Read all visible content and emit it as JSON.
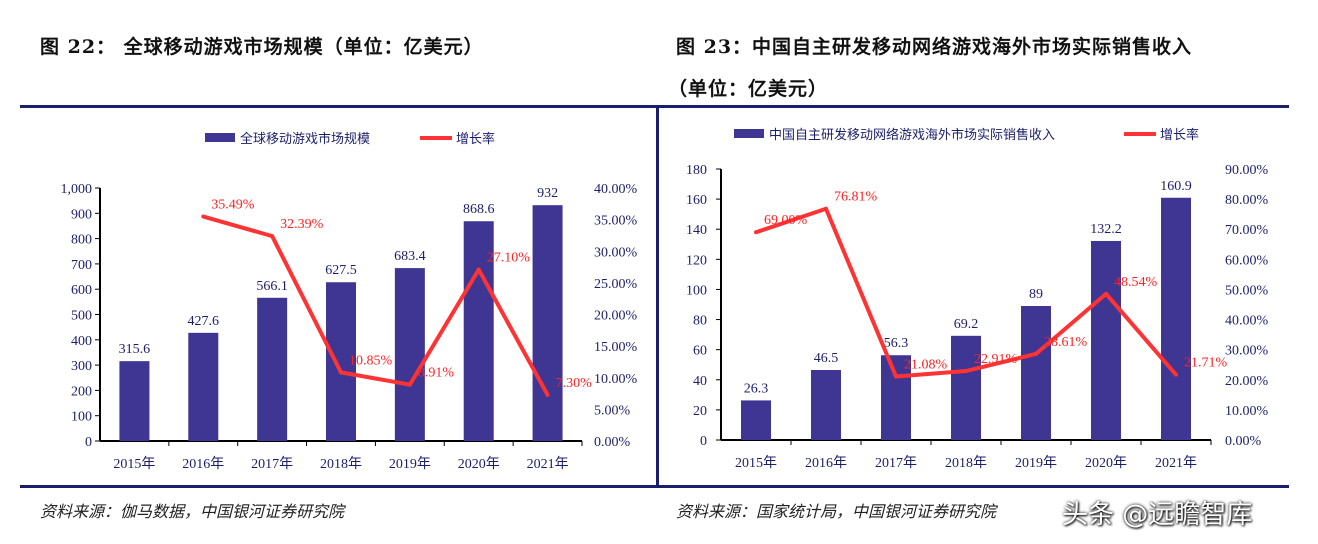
{
  "left": {
    "title": "图 22：  全球移动游戏市场规模（单位：亿美元）",
    "source": "资料来源：伽马数据，中国银河证券研究院"
  },
  "right": {
    "title_line1": "图 23：中国自主研发移动网络游戏海外市场实际销售收入",
    "title_line2": "（单位：亿美元）",
    "source": "资料来源：国家统计局，中国银河证券研究院"
  },
  "watermark": "头条 @远瞻智库",
  "colors": {
    "bar": "#3f3592",
    "line": "#ff3333",
    "axis_text": "#1b1f6b"
  },
  "chart_data": [
    {
      "type": "bar",
      "categories": [
        "2015年",
        "2016年",
        "2017年",
        "2018年",
        "2019年",
        "2020年",
        "2021年"
      ],
      "series": [
        {
          "name": "全球移动游戏市场规模",
          "type": "bar",
          "axis": "left",
          "values": [
            315.6,
            427.6,
            566.1,
            627.5,
            683.4,
            868.6,
            932
          ],
          "labels": [
            "315.6",
            "427.6",
            "566.1",
            "627.5",
            "683.4",
            "868.6",
            "932"
          ]
        },
        {
          "name": "增长率",
          "type": "line",
          "axis": "right",
          "values": [
            null,
            35.49,
            32.39,
            10.85,
            8.91,
            27.1,
            7.3
          ],
          "labels": [
            "",
            "35.49%",
            "32.39%",
            "10.85%",
            "8.91%",
            "27.10%",
            "7.30%"
          ]
        }
      ],
      "ylim": [
        0,
        1000
      ],
      "yticks": [
        "0",
        "100",
        "200",
        "300",
        "400",
        "500",
        "600",
        "700",
        "800",
        "900",
        "1,000"
      ],
      "y2lim": [
        0,
        40
      ],
      "y2ticks": [
        "0.00%",
        "5.00%",
        "10.00%",
        "15.00%",
        "20.00%",
        "25.00%",
        "30.00%",
        "35.00%",
        "40.00%"
      ],
      "legend": "top-center"
    },
    {
      "type": "bar",
      "categories": [
        "2015年",
        "2016年",
        "2017年",
        "2018年",
        "2019年",
        "2020年",
        "2021年"
      ],
      "series": [
        {
          "name": "中国自主研发移动网络游戏海外市场实际销售收入",
          "type": "bar",
          "axis": "left",
          "values": [
            26.3,
            46.5,
            56.3,
            69.2,
            89,
            132.2,
            160.9
          ],
          "labels": [
            "26.3",
            "46.5",
            "56.3",
            "69.2",
            "89",
            "132.2",
            "160.9"
          ]
        },
        {
          "name": "增长率",
          "type": "line",
          "axis": "right",
          "values": [
            69.0,
            76.81,
            21.08,
            22.91,
            28.61,
            48.54,
            21.71
          ],
          "labels": [
            "69.00%",
            "76.81%",
            "21.08%",
            "22.91%",
            "28.61%",
            "48.54%",
            "21.71%"
          ]
        }
      ],
      "ylim": [
        0,
        180
      ],
      "yticks": [
        "0",
        "20",
        "40",
        "60",
        "80",
        "100",
        "120",
        "140",
        "160",
        "180"
      ],
      "y2lim": [
        0,
        90
      ],
      "y2ticks": [
        "0.00%",
        "10.00%",
        "20.00%",
        "30.00%",
        "40.00%",
        "50.00%",
        "60.00%",
        "70.00%",
        "80.00%",
        "90.00%"
      ],
      "legend": "top-center"
    }
  ]
}
